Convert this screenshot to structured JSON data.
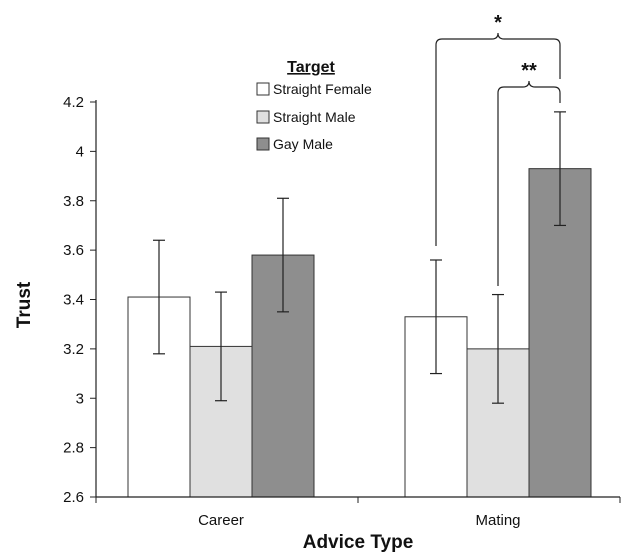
{
  "chart_data": {
    "type": "bar",
    "xlabel": "Advice Type",
    "ylabel": "Trust",
    "ylim": [
      2.6,
      4.2
    ],
    "yticks": [
      "2.6",
      "2.8",
      "3",
      "3.2",
      "3.4",
      "3.6",
      "3.8",
      "4",
      "4.2"
    ],
    "categories": [
      "Career",
      "Mating"
    ],
    "legend_title": "Target",
    "legend_position": "top-center",
    "series": [
      {
        "name": "Straight Female",
        "color": "#ffffff",
        "values": [
          3.41,
          3.33
        ],
        "error_low": [
          3.18,
          3.1
        ],
        "error_high": [
          3.64,
          3.56
        ]
      },
      {
        "name": "Straight Male",
        "color": "#e0e0e0",
        "values": [
          3.21,
          3.2
        ],
        "error_low": [
          2.99,
          2.98
        ],
        "error_high": [
          3.43,
          3.42
        ]
      },
      {
        "name": "Gay Male",
        "color": "#8e8e8e",
        "values": [
          3.58,
          3.93
        ],
        "error_low": [
          3.35,
          3.7
        ],
        "error_high": [
          3.81,
          4.16
        ]
      }
    ],
    "annotations": [
      {
        "label": "*",
        "category": "Mating",
        "from_series": "Straight Female",
        "to_series": "Gay Male"
      },
      {
        "label": "**",
        "category": "Mating",
        "from_series": "Straight Male",
        "to_series": "Gay Male"
      }
    ],
    "grid": false
  }
}
